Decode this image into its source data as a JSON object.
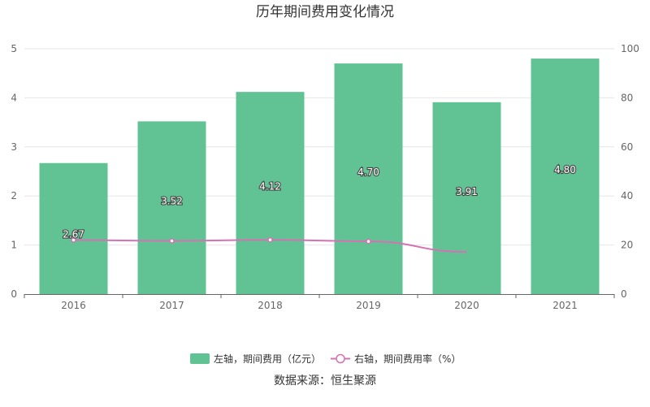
{
  "chart_data": {
    "type": "bar",
    "title": "历年期间费用变化情况",
    "categories": [
      "2016",
      "2017",
      "2018",
      "2019",
      "2020",
      "2021"
    ],
    "series": [
      {
        "name": "左轴，期间费用（亿元）",
        "type": "bar",
        "axis": "left",
        "color": "#61c393",
        "values": [
          2.67,
          3.52,
          4.12,
          4.7,
          3.91,
          4.8
        ],
        "labels": [
          "2.67",
          "3.52",
          "4.12",
          "4.70",
          "3.91",
          "4.80"
        ]
      },
      {
        "name": "右轴，期间费用率（%）",
        "type": "line",
        "axis": "right",
        "color": "#d672b4",
        "values": [
          22.0,
          21.7,
          22.1,
          21.5,
          17.2,
          null
        ]
      }
    ],
    "y_left": {
      "min": 0,
      "max": 5,
      "ticks": [
        "0",
        "1",
        "2",
        "3",
        "4",
        "5"
      ]
    },
    "y_right": {
      "min": 0,
      "max": 100,
      "ticks": [
        "0",
        "20",
        "40",
        "60",
        "80",
        "100"
      ]
    },
    "grid": true,
    "legend": "bottom"
  },
  "source": "数据来源：恒生聚源"
}
